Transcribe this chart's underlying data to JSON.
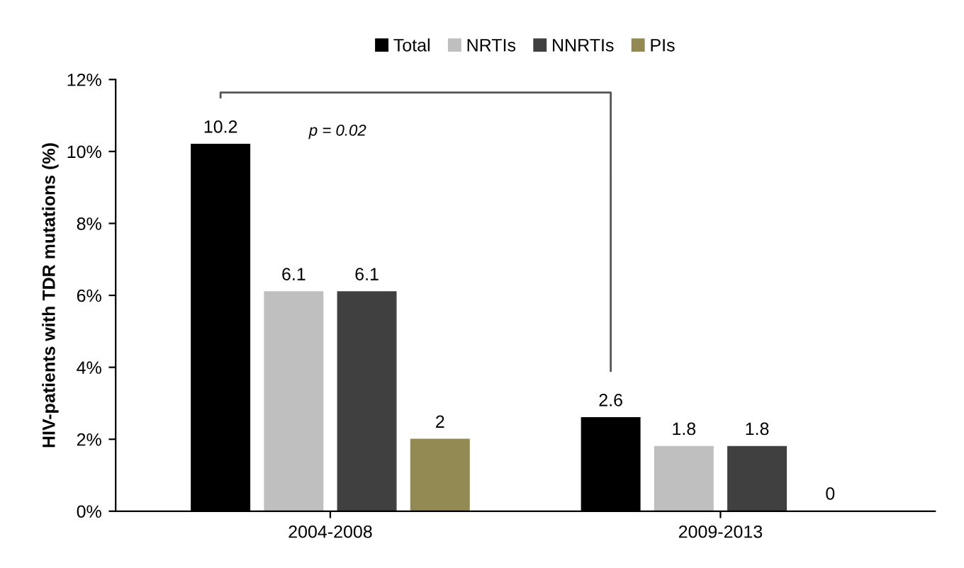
{
  "chart_data": {
    "type": "bar",
    "ylabel": "HIV-patients with TDR mutations (%)",
    "categories": [
      "2004-2008",
      "2009-2013"
    ],
    "series": [
      {
        "name": "Total",
        "color": "#000000",
        "values": [
          10.2,
          2.6
        ]
      },
      {
        "name": "NRTIs",
        "color": "#bfbfbf",
        "values": [
          6.1,
          1.8
        ]
      },
      {
        "name": "NNRTIs",
        "color": "#404040",
        "values": [
          6.1,
          1.8
        ]
      },
      {
        "name": "PIs",
        "color": "#938953",
        "values": [
          2,
          0
        ]
      }
    ],
    "ylim": [
      0,
      12
    ],
    "yticks": [
      {
        "value": 0,
        "label": "0%"
      },
      {
        "value": 2,
        "label": "2%"
      },
      {
        "value": 4,
        "label": "4%"
      },
      {
        "value": 6,
        "label": "6%"
      },
      {
        "value": 8,
        "label": "8%"
      },
      {
        "value": 10,
        "label": "10%"
      },
      {
        "value": 12,
        "label": "12%"
      }
    ],
    "annotations": [
      "p = 0.02"
    ],
    "data_labels": true,
    "grid": false,
    "legend": "top"
  }
}
